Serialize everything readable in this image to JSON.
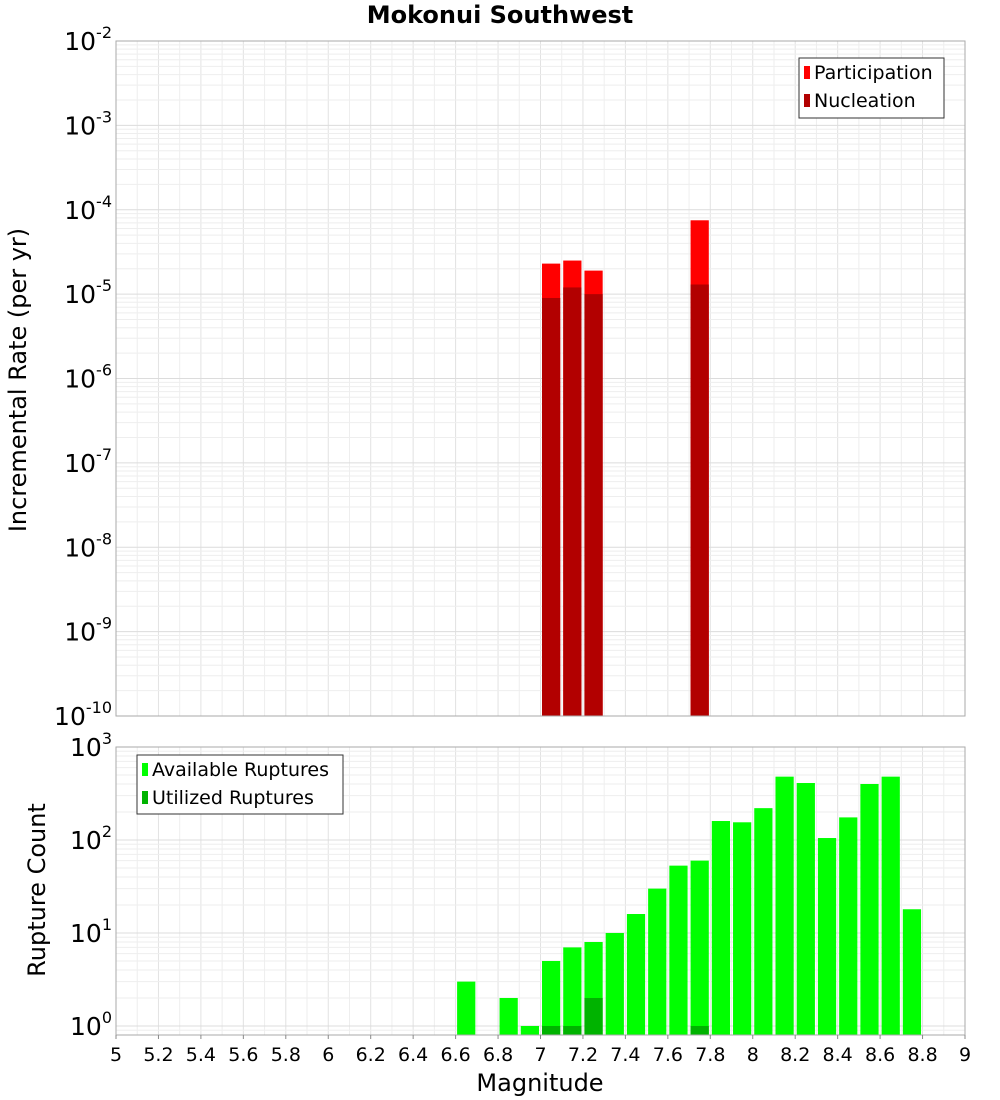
{
  "chart_data": [
    {
      "type": "bar",
      "title": "Mokonui Southwest",
      "xlabel": "",
      "ylabel": "Incremental Rate (per yr)",
      "yscale": "log",
      "xlim": [
        5,
        9
      ],
      "ylim": [
        1e-10,
        0.01
      ],
      "y_tick_exponents": [
        -10,
        -9,
        -8,
        -7,
        -6,
        -5,
        -4,
        -3,
        -2
      ],
      "bar_width": 0.1,
      "grid": true,
      "legend_position": "top-right",
      "overlay": true,
      "series": [
        {
          "name": "Participation",
          "color": "#ff0000",
          "x": [
            7.05,
            7.15,
            7.25,
            7.75
          ],
          "values": [
            2.3e-05,
            2.5e-05,
            1.9e-05,
            7.5e-05
          ]
        },
        {
          "name": "Nucleation",
          "color": "#b20000",
          "x": [
            7.05,
            7.15,
            7.25,
            7.75
          ],
          "values": [
            9e-06,
            1.2e-05,
            1e-05,
            1.3e-05
          ]
        }
      ]
    },
    {
      "type": "bar",
      "title": "",
      "xlabel": "Magnitude",
      "ylabel": "Rupture Count",
      "yscale": "log",
      "xlim": [
        5,
        9
      ],
      "ylim": [
        0.8,
        1000
      ],
      "y_tick_exponents": [
        0,
        1,
        2,
        3
      ],
      "x_ticks": [
        "5",
        "5.2",
        "5.4",
        "5.6",
        "5.8",
        "6",
        "6.2",
        "6.4",
        "6.6",
        "6.8",
        "7",
        "7.2",
        "7.4",
        "7.6",
        "7.8",
        "8",
        "8.2",
        "8.4",
        "8.6",
        "8.8",
        "9"
      ],
      "bar_width": 0.1,
      "grid": true,
      "legend_position": "top-left",
      "overlay": true,
      "series": [
        {
          "name": "Available Ruptures",
          "color": "#00ff00",
          "x": [
            6.65,
            6.85,
            6.95,
            7.05,
            7.15,
            7.25,
            7.35,
            7.45,
            7.55,
            7.65,
            7.75,
            7.85,
            7.95,
            8.05,
            8.15,
            8.25,
            8.35,
            8.45,
            8.55,
            8.65,
            8.75
          ],
          "values": [
            3,
            2,
            1,
            5,
            7,
            8,
            10,
            16,
            30,
            53,
            60,
            160,
            155,
            220,
            480,
            410,
            105,
            175,
            400,
            480,
            18
          ]
        },
        {
          "name": "Utilized Ruptures",
          "color": "#00b300",
          "x": [
            7.05,
            7.15,
            7.25,
            7.75
          ],
          "values": [
            1,
            1,
            2,
            1
          ]
        }
      ]
    }
  ]
}
